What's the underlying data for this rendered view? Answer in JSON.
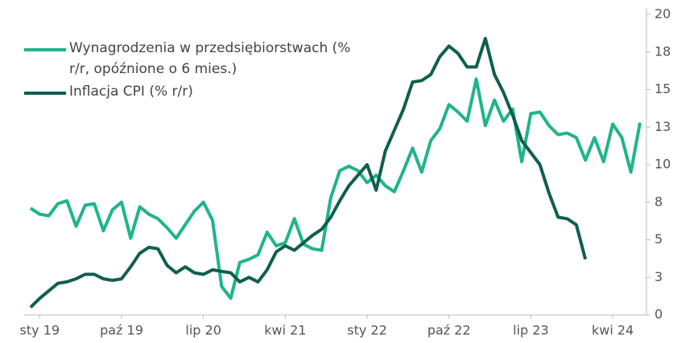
{
  "chart_data": {
    "type": "line",
    "categories": [
      null,
      "sty 19",
      null,
      null,
      null,
      null,
      null,
      null,
      null,
      null,
      "paź 19",
      null,
      null,
      null,
      null,
      null,
      null,
      null,
      null,
      "lip 20",
      null,
      null,
      null,
      null,
      null,
      null,
      null,
      null,
      "kwi 21",
      null,
      null,
      null,
      null,
      null,
      null,
      null,
      null,
      "sty 22",
      null,
      null,
      null,
      null,
      null,
      null,
      null,
      null,
      "paź 22",
      null,
      null,
      null,
      null,
      null,
      null,
      null,
      null,
      "lip 23",
      null,
      null,
      null,
      null,
      null,
      null,
      null,
      null,
      "kwi 24",
      null,
      null,
      null
    ],
    "series": [
      {
        "name": "Wynagrodzenia w przedsiębiorstwach (% r/r, opóźnione o 6 mies.)",
        "color": "#1fb48c",
        "values": [
          7.1,
          6.7,
          6.6,
          7.4,
          7.6,
          5.9,
          7.3,
          7.4,
          5.6,
          7.0,
          7.5,
          5.1,
          7.2,
          6.7,
          6.4,
          5.8,
          5.1,
          6.0,
          6.9,
          7.5,
          6.3,
          1.9,
          1.1,
          3.5,
          3.7,
          4.0,
          5.5,
          4.6,
          4.8,
          6.4,
          4.7,
          4.4,
          4.3,
          7.8,
          9.6,
          9.9,
          9.6,
          8.8,
          9.3,
          8.6,
          8.2,
          9.6,
          11.1,
          9.5,
          11.6,
          12.4,
          14.0,
          13.5,
          12.9,
          15.7,
          12.6,
          14.3,
          12.9,
          13.7,
          10.2,
          13.4,
          13.5,
          12.6,
          12.0,
          12.1,
          11.8,
          10.3,
          11.8,
          10.2,
          12.7,
          11.8,
          9.5,
          12.8
        ]
      },
      {
        "name": "Inflacja CPI (% r/r)",
        "color": "#0f5f4e",
        "values": [
          0.5,
          1.1,
          1.6,
          2.1,
          2.2,
          2.4,
          2.7,
          2.7,
          2.4,
          2.3,
          2.4,
          3.2,
          4.1,
          4.5,
          4.4,
          3.3,
          2.8,
          3.2,
          2.8,
          2.7,
          3.0,
          2.9,
          2.8,
          2.2,
          2.5,
          2.2,
          3.0,
          4.2,
          4.6,
          4.3,
          4.8,
          5.3,
          5.7,
          6.5,
          7.6,
          8.6,
          9.3,
          10.0,
          8.3,
          10.9,
          12.3,
          13.7,
          15.5,
          15.6,
          16.0,
          17.2,
          17.9,
          17.4,
          16.5,
          16.5,
          18.4,
          16.0,
          14.8,
          13.3,
          11.6,
          10.8,
          10.0,
          8.1,
          6.5,
          6.4,
          6.0,
          3.7,
          null,
          null,
          null,
          null,
          null,
          null
        ]
      }
    ],
    "ylim": [
      0,
      20
    ],
    "yticks": [
      0,
      {
        "value": 2.5,
        "label": "3"
      },
      5,
      {
        "value": 7.5,
        "label": "8"
      },
      10,
      {
        "value": 12.5,
        "label": "13"
      },
      15,
      {
        "value": 17.5,
        "label": "18"
      },
      20
    ]
  }
}
